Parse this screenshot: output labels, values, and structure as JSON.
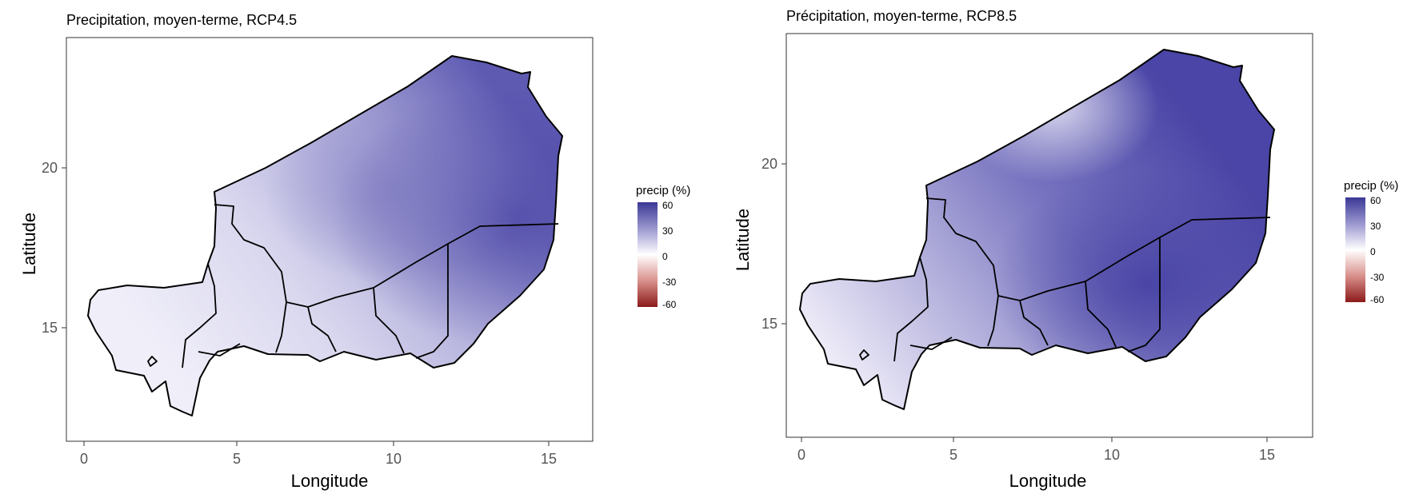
{
  "panels": [
    {
      "title": "Precipitation, moyen-terme, RCP4.5",
      "xlabel": "Longitude",
      "ylabel": "Latitude",
      "x_ticks": [
        "0",
        "5",
        "10",
        "15"
      ],
      "y_ticks": [
        "15",
        "20"
      ],
      "legend": {
        "title": "precip (%)",
        "ticks": [
          "60",
          "30",
          "0",
          "-30",
          "-60"
        ]
      }
    },
    {
      "title": "Précipitation, moyen-terme, RCP8.5",
      "xlabel": "Longitude",
      "ylabel": "Latitude",
      "x_ticks": [
        "0",
        "5",
        "10",
        "15"
      ],
      "y_ticks": [
        "15",
        "20"
      ],
      "legend": {
        "title": "precip (%)",
        "ticks": [
          "60",
          "30",
          "0",
          "-30",
          "-60"
        ]
      }
    }
  ],
  "colors": {
    "high": "#3b3896",
    "mid": "#ffffff",
    "low": "#8b1a1a"
  }
}
